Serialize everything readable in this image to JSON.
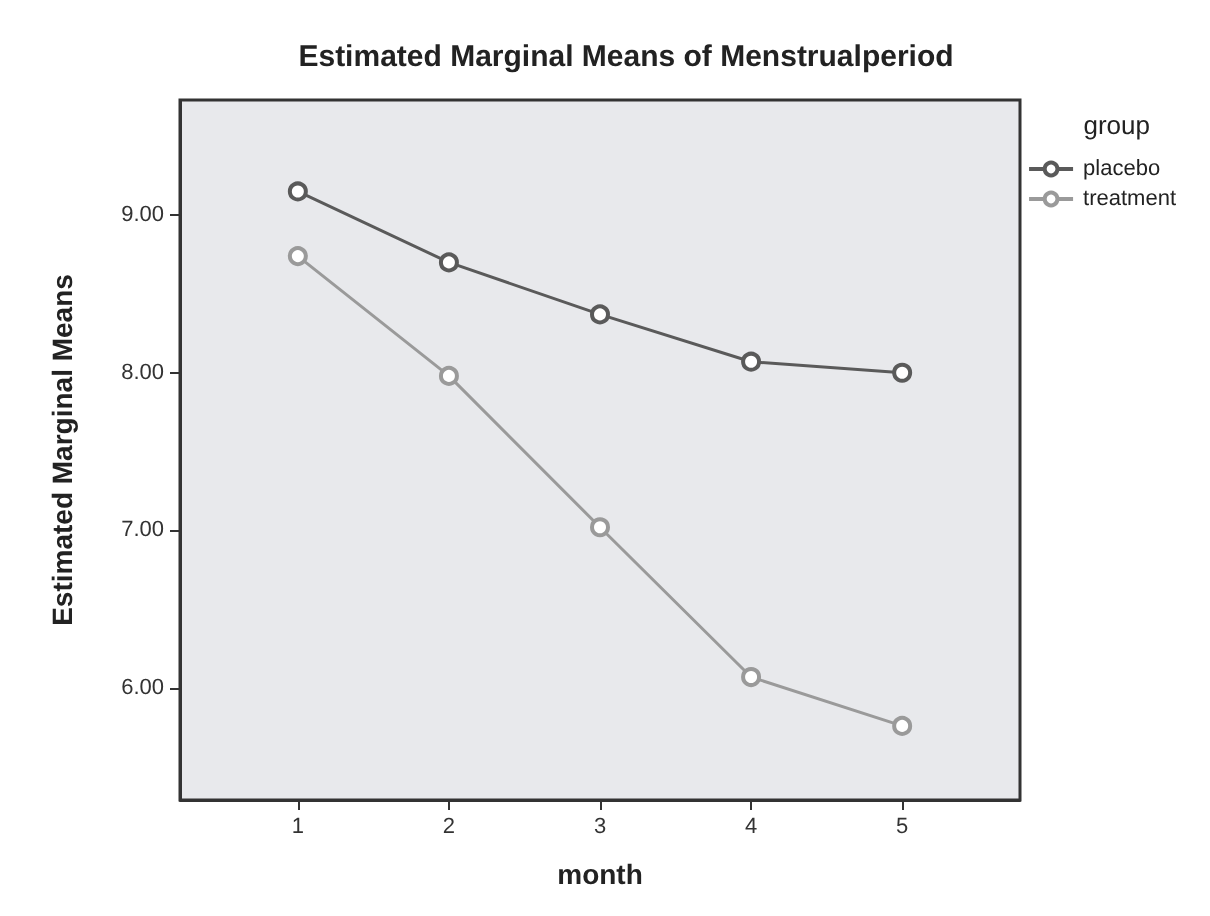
{
  "chart_data": {
    "type": "line",
    "title": "Estimated Marginal Means of Menstrualperiod",
    "xlabel": "month",
    "ylabel": "Estimated Marginal Means",
    "legend_title": "group",
    "x": [
      1,
      2,
      3,
      4,
      5
    ],
    "series": [
      {
        "name": "placebo",
        "color": "#5a5a5a",
        "values": [
          9.15,
          8.7,
          8.37,
          8.07,
          8.0
        ]
      },
      {
        "name": "treatment",
        "color": "#9a9a9a",
        "values": [
          8.74,
          7.98,
          7.02,
          6.07,
          5.76
        ]
      }
    ],
    "xlim": [
      0.22,
      5.78
    ],
    "xticks": [
      1,
      2,
      3,
      4,
      5
    ],
    "ylim": [
      5.29,
      9.73
    ],
    "yticks": [
      {
        "value": 6,
        "label": "6.00"
      },
      {
        "value": 7,
        "label": "7.00"
      },
      {
        "value": 8,
        "label": "8.00"
      },
      {
        "value": 9,
        "label": "9.00"
      }
    ],
    "grid": false,
    "legend": "top right",
    "marker": "circle",
    "line_style": "solid"
  }
}
